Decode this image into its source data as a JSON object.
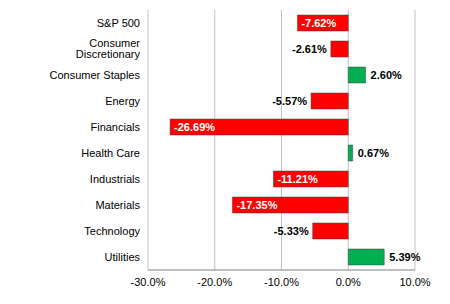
{
  "chart_data": {
    "type": "bar",
    "orientation": "horizontal",
    "categories": [
      "S&P 500",
      "Consumer Discretionary",
      "Consumer Staples",
      "Energy",
      "Financials",
      "Health Care",
      "Industrials",
      "Materials",
      "Technology",
      "Utilities"
    ],
    "values": [
      -7.62,
      -2.61,
      2.6,
      -5.57,
      -26.69,
      0.67,
      -11.21,
      -17.35,
      -5.33,
      5.39
    ],
    "value_labels": [
      "-7.62%",
      "-2.61%",
      "2.60%",
      "-5.57%",
      "-26.69%",
      "0.67%",
      "-11.21%",
      "-17.35%",
      "-5.33%",
      "5.39%"
    ],
    "colors": [
      "#ff0000",
      "#ff0000",
      "#00b050",
      "#ff0000",
      "#ff0000",
      "#00b050",
      "#ff0000",
      "#ff0000",
      "#ff0000",
      "#00b050"
    ],
    "xlim": [
      -30,
      10
    ],
    "xticks": [
      {
        "value": -30,
        "label": "-30.0%"
      },
      {
        "value": -20,
        "label": "-20.0%"
      },
      {
        "value": -10,
        "label": "-10.0%"
      },
      {
        "value": 0,
        "label": "0.0%"
      },
      {
        "value": 10,
        "label": "10.0%"
      }
    ],
    "grid": true,
    "data_labels": true
  }
}
